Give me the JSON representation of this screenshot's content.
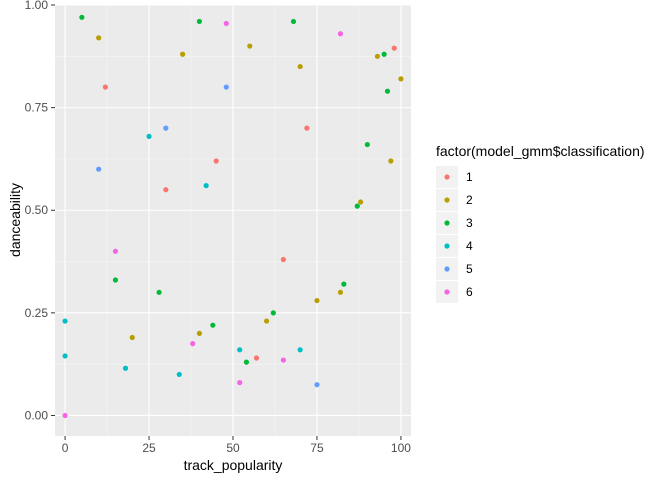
{
  "chart_data": {
    "type": "scatter",
    "title": "",
    "xlabel": "track_popularity",
    "ylabel": "danceability",
    "xlim": [
      -3,
      103
    ],
    "ylim": [
      -0.05,
      1.0
    ],
    "x_ticks": [
      0,
      25,
      50,
      75,
      100
    ],
    "x_tick_labels": [
      "0",
      "25",
      "50",
      "75",
      "100"
    ],
    "y_ticks": [
      0.0,
      0.25,
      0.5,
      0.75,
      1.0
    ],
    "y_tick_labels": [
      "0.00",
      "0.25",
      "0.50",
      "0.75",
      "1.00"
    ],
    "grid": true,
    "legend": {
      "title": "factor(model_gmm$classification)",
      "position": "right",
      "entries": [
        "1",
        "2",
        "3",
        "4",
        "5",
        "6"
      ]
    },
    "series": [
      {
        "name": "1",
        "color": "#F8766D",
        "values": [
          [
            98,
            0.895
          ],
          [
            57,
            0.14
          ],
          [
            72,
            0.7
          ],
          [
            45,
            0.62
          ],
          [
            30,
            0.55
          ],
          [
            12,
            0.8
          ],
          [
            65,
            0.38
          ]
        ]
      },
      {
        "name": "2",
        "color": "#B79F00",
        "values": [
          [
            100,
            0.82
          ],
          [
            97,
            0.62
          ],
          [
            93,
            0.875
          ],
          [
            88,
            0.52
          ],
          [
            82,
            0.3
          ],
          [
            20,
            0.19
          ],
          [
            40,
            0.2
          ],
          [
            60,
            0.23
          ],
          [
            75,
            0.28
          ],
          [
            10,
            0.92
          ],
          [
            35,
            0.88
          ],
          [
            55,
            0.9
          ],
          [
            70,
            0.85
          ]
        ]
      },
      {
        "name": "3",
        "color": "#00BA38",
        "values": [
          [
            95,
            0.88
          ],
          [
            96,
            0.79
          ],
          [
            90,
            0.66
          ],
          [
            87,
            0.51
          ],
          [
            83,
            0.32
          ],
          [
            62,
            0.25
          ],
          [
            54,
            0.13
          ],
          [
            44,
            0.22
          ],
          [
            28,
            0.3
          ],
          [
            15,
            0.33
          ],
          [
            5,
            0.97
          ],
          [
            40,
            0.96
          ],
          [
            68,
            0.96
          ]
        ]
      },
      {
        "name": "4",
        "color": "#00BFC4",
        "values": [
          [
            0,
            0.145
          ],
          [
            18,
            0.115
          ],
          [
            34,
            0.1
          ],
          [
            52,
            0.16
          ],
          [
            70,
            0.16
          ],
          [
            0,
            0.23
          ],
          [
            25,
            0.68
          ],
          [
            42,
            0.56
          ]
        ]
      },
      {
        "name": "5",
        "color": "#619CFF",
        "values": [
          [
            75,
            0.075
          ],
          [
            30,
            0.7
          ],
          [
            48,
            0.8
          ],
          [
            10,
            0.6
          ]
        ]
      },
      {
        "name": "6",
        "color": "#F564E3",
        "values": [
          [
            0,
            0.0
          ],
          [
            52,
            0.08
          ],
          [
            65,
            0.135
          ],
          [
            38,
            0.175
          ],
          [
            48,
            0.955
          ],
          [
            82,
            0.93
          ],
          [
            15,
            0.4
          ]
        ]
      }
    ]
  }
}
